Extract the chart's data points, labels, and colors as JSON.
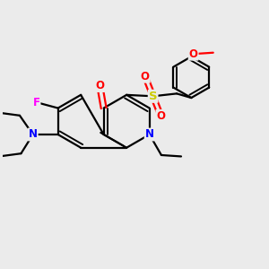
{
  "bg_color": "#EBEBEB",
  "bond_color": "#000000",
  "bond_width": 1.6,
  "atom_colors": {
    "N_ring": "#0000FF",
    "N_amino": "#0000FF",
    "O_carbonyl": "#FF0000",
    "O_sulfonyl": "#FF0000",
    "O_methoxy": "#FF0000",
    "S": "#CCCC00",
    "F": "#FF00FF"
  },
  "font_size_atom": 8.5,
  "fig_width": 3.0,
  "fig_height": 3.0,
  "xlim": [
    0,
    10
  ],
  "ylim": [
    0,
    10
  ]
}
